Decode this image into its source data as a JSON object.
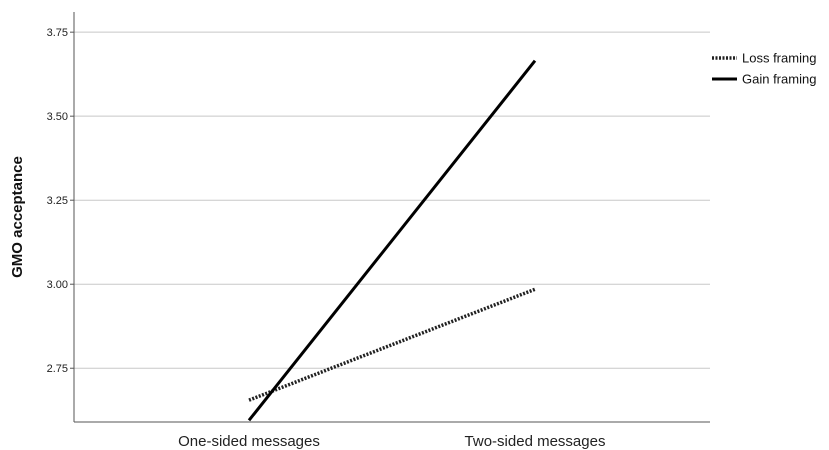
{
  "chart_data": {
    "type": "line",
    "ylabel": "GMO acceptance",
    "categories": [
      "One-sided messages",
      "Two-sided messages"
    ],
    "ylim": [
      2.59,
      3.81
    ],
    "yticks": [
      "2.75",
      "3.00",
      "3.25",
      "3.50",
      "3.75"
    ],
    "grid": true,
    "legend_position": "top-right",
    "series": [
      {
        "name": "Loss framing",
        "values": [
          2.655,
          2.985
        ],
        "style": "dotted",
        "color": "#222222"
      },
      {
        "name": "Gain framing",
        "values": [
          2.595,
          3.665
        ],
        "style": "solid",
        "color": "#000000"
      }
    ]
  }
}
